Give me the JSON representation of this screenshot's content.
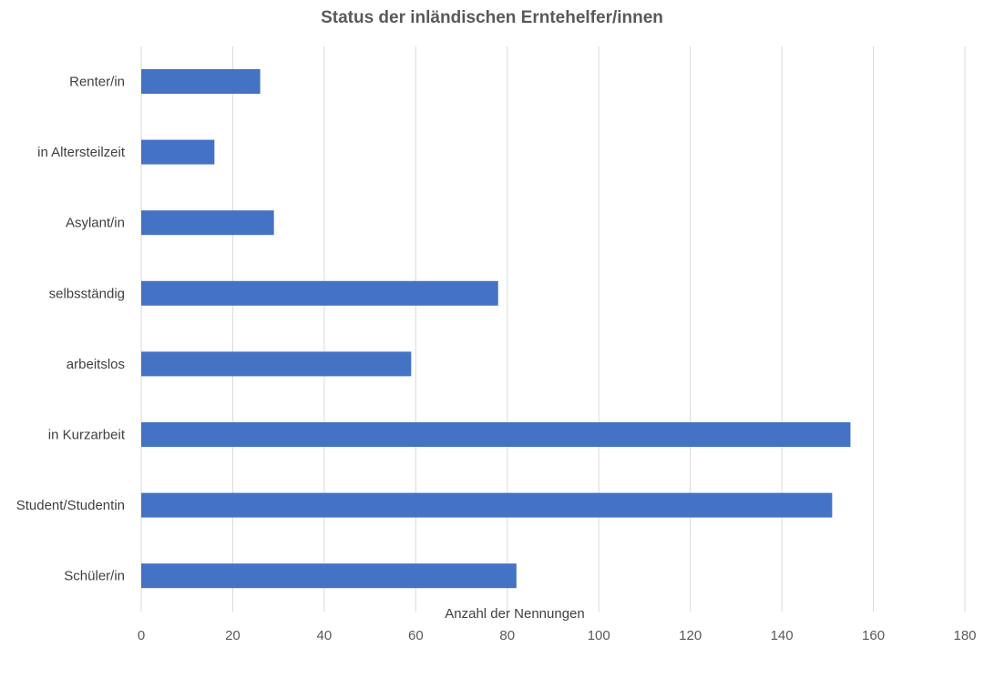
{
  "chart_data": {
    "type": "bar",
    "orientation": "horizontal",
    "title": "Status der inländischen Erntehelfer/innen",
    "xlabel": "Anzahl der Nennungen",
    "ylabel": "",
    "categories": [
      "Renter/in",
      "in Altersteilzeit",
      "Asylant/in",
      "selbsständig",
      "arbeitslos",
      "in Kurzarbeit",
      "Student/Studentin",
      "Schüler/in"
    ],
    "values": [
      26,
      16,
      29,
      78,
      59,
      155,
      151,
      82
    ],
    "xlim": [
      0,
      180
    ],
    "xticks": [
      "0",
      "20",
      "40",
      "60",
      "80",
      "100",
      "120",
      "140",
      "160",
      "180"
    ],
    "grid": true,
    "legend": "none",
    "bar_color": "#4472c4"
  }
}
